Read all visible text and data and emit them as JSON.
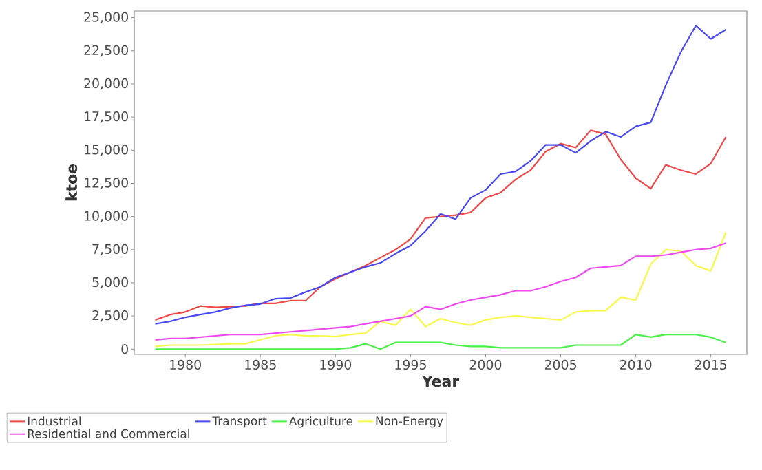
{
  "chart_data": {
    "type": "line",
    "xlabel": "Year",
    "ylabel": "ktoe",
    "x": [
      1978,
      1979,
      1980,
      1981,
      1982,
      1983,
      1984,
      1985,
      1986,
      1987,
      1988,
      1989,
      1990,
      1991,
      1992,
      1993,
      1994,
      1995,
      1996,
      1997,
      1998,
      1999,
      2000,
      2001,
      2002,
      2003,
      2004,
      2005,
      2006,
      2007,
      2008,
      2009,
      2010,
      2011,
      2012,
      2013,
      2014,
      2015,
      2016
    ],
    "series": [
      {
        "name": "Industrial",
        "color": "#f04848",
        "values": [
          2200,
          2600,
          2800,
          3250,
          3150,
          3200,
          3250,
          3450,
          3450,
          3650,
          3650,
          4700,
          5300,
          5800,
          6300,
          6900,
          7500,
          8300,
          9900,
          10000,
          10100,
          10300,
          11400,
          11800,
          12800,
          13500,
          14900,
          15500,
          15200,
          16500,
          16200,
          14300,
          12900,
          12100,
          13900,
          13500,
          13200,
          14000,
          16000
        ]
      },
      {
        "name": "Transport",
        "color": "#4848f0",
        "values": [
          1900,
          2100,
          2400,
          2600,
          2800,
          3100,
          3300,
          3400,
          3800,
          3850,
          4300,
          4700,
          5400,
          5800,
          6200,
          6500,
          7200,
          7800,
          8900,
          10200,
          9800,
          11400,
          12000,
          13200,
          13400,
          14200,
          15400,
          15400,
          14800,
          15700,
          16400,
          16000,
          16800,
          17100,
          19900,
          22400,
          24400,
          23400,
          24100
        ]
      },
      {
        "name": "Agriculture",
        "color": "#48f048",
        "values": [
          0,
          0,
          0,
          0,
          0,
          0,
          0,
          0,
          0,
          0,
          0,
          0,
          0,
          100,
          400,
          0,
          500,
          500,
          500,
          500,
          300,
          200,
          200,
          100,
          100,
          100,
          100,
          100,
          300,
          300,
          300,
          300,
          1100,
          900,
          1100,
          1100,
          1100,
          900,
          500
        ]
      },
      {
        "name": "Non-Energy",
        "color": "#f8f848",
        "values": [
          200,
          300,
          300,
          300,
          350,
          400,
          400,
          700,
          1000,
          1100,
          1000,
          1000,
          950,
          1100,
          1200,
          2100,
          1800,
          3000,
          1700,
          2300,
          2000,
          1800,
          2200,
          2400,
          2500,
          2400,
          2300,
          2200,
          2800,
          2900,
          2900,
          3900,
          3700,
          6400,
          7500,
          7400,
          6300,
          5900,
          8800
        ]
      },
      {
        "name": "Residential and Commercial",
        "color": "#f048f0",
        "values": [
          700,
          800,
          800,
          900,
          1000,
          1100,
          1100,
          1100,
          1200,
          1300,
          1400,
          1500,
          1600,
          1700,
          1900,
          2100,
          2300,
          2500,
          3200,
          3000,
          3400,
          3700,
          3900,
          4100,
          4400,
          4400,
          4700,
          5100,
          5400,
          6100,
          6200,
          6300,
          7000,
          7000,
          7100,
          7300,
          7500,
          7600,
          8000
        ]
      }
    ],
    "xlim": [
      1976.6,
      2017.4
    ],
    "ylim": [
      -400,
      25500
    ],
    "xticks": [
      1980,
      1985,
      1990,
      1995,
      2000,
      2005,
      2010,
      2015
    ],
    "yticks": [
      {
        "value": 0,
        "label": "0"
      },
      {
        "value": 2500,
        "label": "2,500"
      },
      {
        "value": 5000,
        "label": "5,000"
      },
      {
        "value": 7500,
        "label": "7,500"
      },
      {
        "value": 10000,
        "label": "10,000"
      },
      {
        "value": 12500,
        "label": "12,500"
      },
      {
        "value": 15000,
        "label": "15,000"
      },
      {
        "value": 17500,
        "label": "17,500"
      },
      {
        "value": 20000,
        "label": "20,000"
      },
      {
        "value": 22500,
        "label": "22,500"
      },
      {
        "value": 25000,
        "label": "25,000"
      }
    ],
    "grid": false,
    "legend": "bottom",
    "marker": "none",
    "line_style": "solid"
  }
}
